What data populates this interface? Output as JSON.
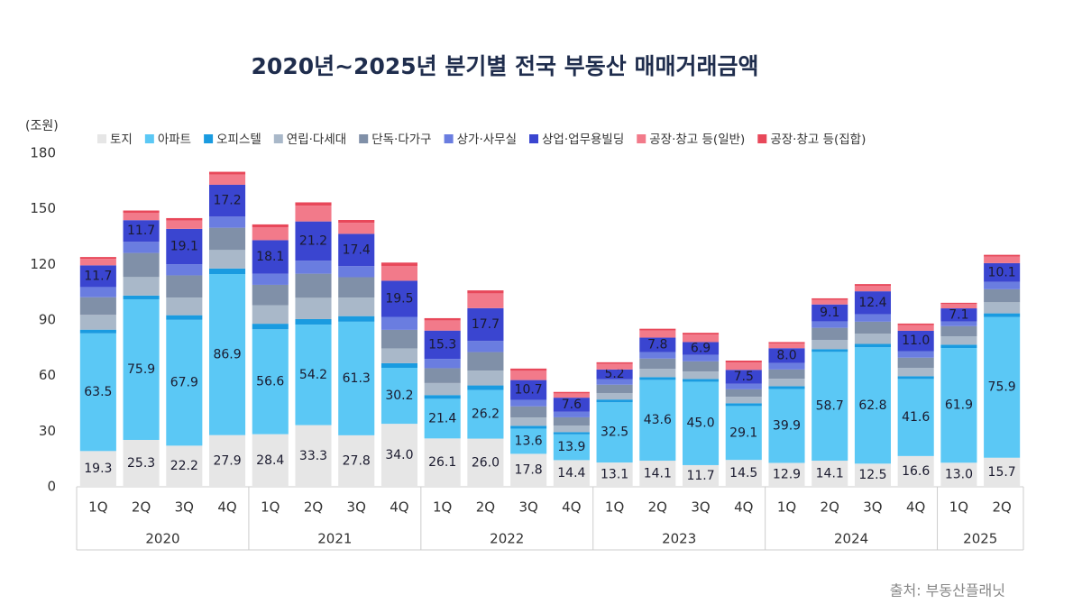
{
  "chart_data": {
    "type": "stacked-bar",
    "title": "2020년~2025년 분기별 전국 부동산 매매거래금액",
    "y_label": "(조원)",
    "source": "출처: 부동산플래닛",
    "ylim": [
      0,
      180
    ],
    "yticks": [
      0,
      30,
      60,
      90,
      120,
      150,
      180
    ],
    "groups": [
      {
        "name": "2020",
        "categories": [
          "1Q",
          "2Q",
          "3Q",
          "4Q"
        ]
      },
      {
        "name": "2021",
        "categories": [
          "1Q",
          "2Q",
          "3Q",
          "4Q"
        ]
      },
      {
        "name": "2022",
        "categories": [
          "1Q",
          "2Q",
          "3Q",
          "4Q"
        ]
      },
      {
        "name": "2023",
        "categories": [
          "1Q",
          "2Q",
          "3Q",
          "4Q"
        ]
      },
      {
        "name": "2024",
        "categories": [
          "1Q",
          "2Q",
          "3Q",
          "4Q"
        ]
      },
      {
        "name": "2025",
        "categories": [
          "1Q",
          "2Q"
        ]
      }
    ],
    "series": [
      {
        "name": "토지",
        "color": "#e6e6e6",
        "values": [
          19.3,
          25.3,
          22.2,
          27.9,
          28.4,
          33.3,
          27.8,
          34.0,
          26.1,
          26.0,
          17.8,
          14.4,
          13.1,
          14.1,
          11.7,
          14.5,
          12.9,
          14.1,
          12.5,
          16.6,
          13.0,
          15.7
        ],
        "value_labels": [
          "19.3",
          "25.3",
          "22.2",
          "27.9",
          "28.4",
          "33.3",
          "27.8",
          "34.0",
          "26.1",
          "26.0",
          "17.8",
          "14.4",
          "13.1",
          "14.1",
          "11.7",
          "14.5",
          "12.9",
          "14.1",
          "12.5",
          "16.6",
          "13.0",
          "15.7"
        ]
      },
      {
        "name": "아파트",
        "color": "#5bc8f5",
        "values": [
          63.5,
          75.9,
          67.9,
          86.9,
          56.6,
          54.2,
          61.3,
          30.2,
          21.4,
          26.2,
          13.6,
          13.9,
          32.5,
          43.6,
          45.0,
          29.1,
          39.9,
          58.7,
          62.8,
          41.6,
          61.9,
          75.9
        ],
        "value_labels": [
          "63.5",
          "75.9",
          "67.9",
          "86.9",
          "56.6",
          "54.2",
          "61.3",
          "30.2",
          "21.4",
          "26.2",
          "13.6",
          "13.9",
          "32.5",
          "43.6",
          "45.0",
          "29.1",
          "39.9",
          "58.7",
          "62.8",
          "41.6",
          "61.9",
          "75.9"
        ]
      },
      {
        "name": "오피스텔",
        "color": "#1a9be0",
        "values": [
          2.0,
          2.0,
          2.5,
          3.0,
          3.0,
          3.0,
          3.0,
          2.5,
          2.0,
          2.5,
          1.5,
          1.2,
          1.5,
          1.5,
          1.5,
          1.5,
          1.5,
          1.5,
          1.8,
          1.5,
          1.8,
          2.0
        ]
      },
      {
        "name": "연립·다세대",
        "color": "#a9b8c9",
        "values": [
          8.0,
          10.0,
          9.5,
          10.0,
          10.0,
          11.5,
          10.0,
          8.0,
          6.5,
          8.0,
          4.5,
          3.5,
          3.5,
          4.5,
          4.0,
          3.5,
          4.0,
          5.0,
          5.5,
          4.5,
          4.5,
          6.0
        ]
      },
      {
        "name": "단독·다가구",
        "color": "#8090a8",
        "values": [
          9.5,
          13.0,
          12.0,
          12.0,
          11.0,
          13.0,
          11.0,
          10.0,
          8.0,
          10.0,
          6.0,
          4.5,
          4.5,
          5.5,
          5.5,
          4.0,
          5.0,
          6.5,
          6.5,
          5.5,
          5.5,
          7.0
        ]
      },
      {
        "name": "상가·사무실",
        "color": "#6a7de0",
        "values": [
          5.5,
          6.0,
          6.0,
          6.0,
          6.0,
          7.0,
          6.0,
          7.0,
          5.0,
          6.0,
          3.5,
          3.0,
          3.0,
          3.5,
          3.5,
          3.0,
          3.5,
          3.5,
          4.0,
          3.5,
          2.5,
          4.0
        ]
      },
      {
        "name": "상업·업무용빌딩",
        "color": "#3a45d0",
        "values": [
          11.7,
          11.7,
          19.1,
          17.2,
          18.1,
          21.2,
          17.4,
          19.5,
          15.3,
          17.7,
          10.7,
          7.6,
          5.2,
          7.8,
          6.9,
          7.5,
          8.0,
          9.1,
          12.4,
          11.0,
          7.1,
          10.1
        ],
        "value_labels": [
          "11.7",
          "11.7",
          "19.1",
          "17.2",
          "18.1",
          "21.2",
          "17.4",
          "19.5",
          "15.3",
          "17.7",
          "10.7",
          "7.6",
          "5.2",
          "7.8",
          "6.9",
          "7.5",
          "8.0",
          "9.1",
          "12.4",
          "11.0",
          "7.1",
          "10.1"
        ]
      },
      {
        "name": "공장·창고 등(일반)",
        "color": "#f27a8a",
        "values": [
          3.5,
          4.0,
          4.5,
          5.5,
          7.0,
          8.5,
          6.0,
          8.0,
          5.5,
          8.0,
          5.0,
          2.3,
          3.0,
          3.8,
          4.0,
          4.0,
          2.5,
          2.5,
          3.0,
          3.0,
          2.3,
          3.5
        ]
      },
      {
        "name": "공장·창고 등(집합)",
        "color": "#e8485a",
        "values": [
          1.0,
          1.2,
          1.3,
          1.5,
          1.5,
          1.8,
          1.5,
          1.8,
          1.2,
          1.6,
          1.2,
          0.8,
          0.9,
          1.0,
          1.0,
          1.0,
          0.8,
          0.8,
          0.9,
          0.9,
          0.7,
          1.0
        ]
      }
    ]
  }
}
